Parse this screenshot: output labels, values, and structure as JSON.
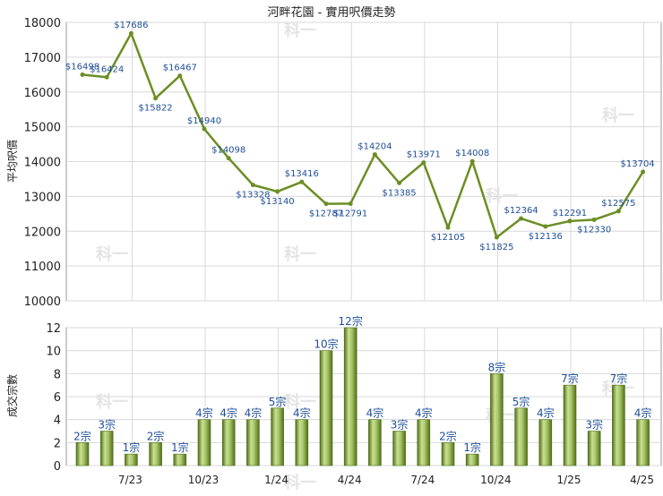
{
  "title": "河畔花園 - 實用呎價走勢",
  "watermark": "科一",
  "colors": {
    "line": "#6b8e23",
    "point_label": "#1f4e99",
    "bar_light": "#c7dd8f",
    "bar_dark": "#5a7a1f",
    "grid": "#d9d9d9",
    "axis_text": "#222222"
  },
  "chart_data": [
    {
      "type": "line",
      "ylabel": "平均呎價",
      "ylim": [
        10000,
        18000
      ],
      "yticks": [
        10000,
        11000,
        12000,
        13000,
        14000,
        15000,
        16000,
        17000,
        18000
      ],
      "grid": true,
      "points": [
        {
          "x": "2023-05",
          "y": 16498,
          "label": "$16498"
        },
        {
          "x": "2023-06",
          "y": 16424,
          "label": "$16424"
        },
        {
          "x": "2023-07",
          "y": 17686,
          "label": "$17686"
        },
        {
          "x": "2023-08",
          "y": 15822,
          "label": "$15822"
        },
        {
          "x": "2023-09",
          "y": 16467,
          "label": "$16467"
        },
        {
          "x": "2023-10",
          "y": 14940,
          "label": "$14940"
        },
        {
          "x": "2023-11",
          "y": 14098,
          "label": "$14098"
        },
        {
          "x": "2023-12",
          "y": 13328,
          "label": "$13328"
        },
        {
          "x": "2024-01",
          "y": 13140,
          "label": "$13140"
        },
        {
          "x": "2024-02",
          "y": 13416,
          "label": "$13416"
        },
        {
          "x": "2024-03",
          "y": 12787,
          "label": "$12787"
        },
        {
          "x": "2024-04",
          "y": 12791,
          "label": "$12791"
        },
        {
          "x": "2024-05",
          "y": 14204,
          "label": "$14204"
        },
        {
          "x": "2024-06",
          "y": 13385,
          "label": "$13385"
        },
        {
          "x": "2024-07",
          "y": 13971,
          "label": "$13971"
        },
        {
          "x": "2024-08",
          "y": 12105,
          "label": "$12105"
        },
        {
          "x": "2024-09",
          "y": 14008,
          "label": "$14008"
        },
        {
          "x": "2024-10",
          "y": 11825,
          "label": "$11825"
        },
        {
          "x": "2024-11",
          "y": 12364,
          "label": "$12364"
        },
        {
          "x": "2024-12",
          "y": 12136,
          "label": "$12136"
        },
        {
          "x": "2025-01",
          "y": 12291,
          "label": "$12291"
        },
        {
          "x": "2025-02",
          "y": 12330,
          "label": "$12330"
        },
        {
          "x": "2025-03",
          "y": 12575,
          "label": "$12575"
        },
        {
          "x": "2025-04",
          "y": 13704,
          "label": "$13704"
        }
      ]
    },
    {
      "type": "bar",
      "ylabel": "成交宗數",
      "ylim": [
        0,
        12
      ],
      "yticks": [
        0,
        2,
        4,
        6,
        8,
        10,
        12
      ],
      "grid": true,
      "categories": [
        "2023-05",
        "2023-06",
        "2023-07",
        "2023-08",
        "2023-09",
        "2023-10",
        "2023-11",
        "2023-12",
        "2024-01",
        "2024-02",
        "2024-03",
        "2024-04",
        "2024-05",
        "2024-06",
        "2024-07",
        "2024-08",
        "2024-09",
        "2024-10",
        "2024-11",
        "2024-12",
        "2025-01",
        "2025-02",
        "2025-03",
        "2025-04"
      ],
      "values": [
        2,
        3,
        1,
        2,
        1,
        4,
        4,
        4,
        5,
        4,
        10,
        12,
        4,
        3,
        4,
        2,
        1,
        8,
        5,
        4,
        7,
        3,
        7,
        4
      ],
      "labels": [
        "2宗",
        "3宗",
        "1宗",
        "2宗",
        "1宗",
        "4宗",
        "4宗",
        "4宗",
        "5宗",
        "4宗",
        "10宗",
        "12宗",
        "4宗",
        "3宗",
        "4宗",
        "2宗",
        "1宗",
        "8宗",
        "5宗",
        "4宗",
        "7宗",
        "3宗",
        "7宗",
        "4宗"
      ]
    }
  ],
  "x_axis": {
    "tick_labels": [
      "7/23",
      "10/23",
      "1/24",
      "4/24",
      "7/24",
      "10/24",
      "1/25",
      "4/25"
    ],
    "tick_months": [
      "2023-07",
      "2023-10",
      "2024-01",
      "2024-04",
      "2024-07",
      "2024-10",
      "2025-01",
      "2025-04"
    ]
  }
}
